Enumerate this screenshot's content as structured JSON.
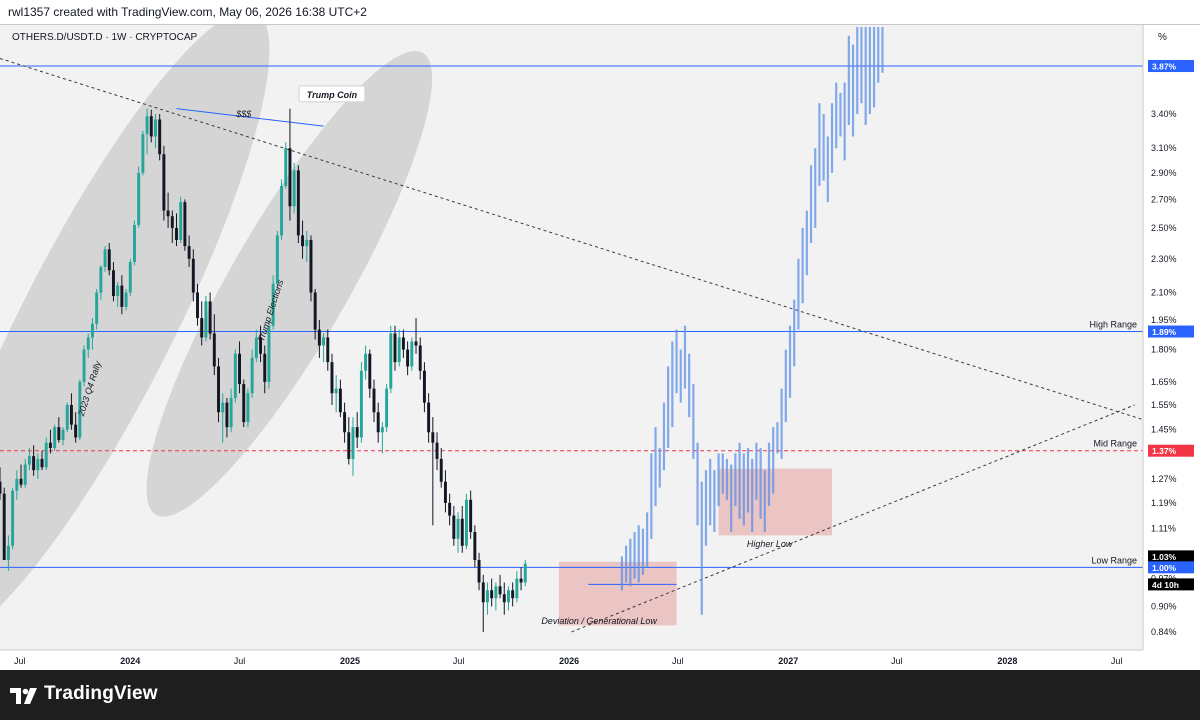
{
  "header": {
    "caption": "rwl1357 created with TradingView.com, May 06, 2026 16:38 UTC+2"
  },
  "footer": {
    "brand": "TradingView"
  },
  "chart_data": {
    "type": "candlestick",
    "title": "OTHERS.D/USDT.D · 1W · CRYPTOCAP",
    "y_unit_label": "%",
    "y_scale": "log",
    "ylim": [
      0.8,
      4.3
    ],
    "y_ticks": [
      0.84,
      0.9,
      0.97,
      1.03,
      1.11,
      1.19,
      1.27,
      1.36,
      1.45,
      1.55,
      1.65,
      1.8,
      1.95,
      2.1,
      2.3,
      2.5,
      2.7,
      2.9,
      3.1,
      3.4
    ],
    "x_range": [
      "2023-05-29",
      "2028-08-14"
    ],
    "x_ticks": [
      {
        "label": "Jul",
        "date": "2023-07-01"
      },
      {
        "label": "2024",
        "date": "2024-01-01"
      },
      {
        "label": "Jul",
        "date": "2024-07-01"
      },
      {
        "label": "2025",
        "date": "2025-01-01"
      },
      {
        "label": "Jul",
        "date": "2025-07-01"
      },
      {
        "label": "2026",
        "date": "2026-01-01"
      },
      {
        "label": "Jul",
        "date": "2026-07-01"
      },
      {
        "label": "2027",
        "date": "2027-01-01"
      },
      {
        "label": "Jul",
        "date": "2027-07-01"
      },
      {
        "label": "2028",
        "date": "2028-01-01"
      },
      {
        "label": "Jul",
        "date": "2028-07-01"
      }
    ],
    "price_badges": [
      {
        "value": "3.87%",
        "price": 3.87,
        "color": "#2962ff"
      },
      {
        "value": "1.89%",
        "price": 1.89,
        "color": "#2962ff"
      },
      {
        "value": "1.37%",
        "price": 1.37,
        "color": "#f23645"
      },
      {
        "value": "1.03%",
        "price": 1.03,
        "color": "#000000"
      },
      {
        "value": "1.00%",
        "price": 1.0,
        "color": "#2962ff"
      },
      {
        "value": "4d 10h",
        "price": 0.955,
        "color": "#000000"
      }
    ],
    "levels": [
      {
        "name": "Top",
        "label": "",
        "price": 3.87,
        "style": "solid",
        "color": "#2962ff"
      },
      {
        "name": "High Range",
        "label": "High Range",
        "price": 1.89,
        "style": "solid",
        "color": "#2962ff"
      },
      {
        "name": "Mid Range",
        "label": "Mid Range",
        "price": 1.37,
        "style": "dashed",
        "color": "#f23645"
      },
      {
        "name": "Low Range",
        "label": "Low Range",
        "price": 1.0,
        "style": "solid",
        "color": "#2962ff"
      }
    ],
    "trendlines": [
      {
        "from": {
          "date": "2023-05-29",
          "price": 3.95
        },
        "to": {
          "date": "2028-08-14",
          "price": 1.49
        },
        "style": "dotted"
      },
      {
        "from": {
          "date": "2026-01-05",
          "price": 0.84
        },
        "to": {
          "date": "2028-07-31",
          "price": 1.55
        },
        "style": "dotted"
      },
      {
        "from": {
          "date": "2024-03-18",
          "price": 3.45
        },
        "to": {
          "date": "2024-11-18",
          "price": 3.29
        },
        "style": "solid"
      }
    ],
    "annotations": [
      {
        "text": "$$$",
        "date": "2024-07-08",
        "price": 3.4,
        "boxed": false,
        "italic": true
      },
      {
        "text": "Trump Coin",
        "date": "2024-12-02",
        "price": 3.58,
        "boxed": true,
        "italic": true
      },
      {
        "text": "Higher Low",
        "date": "2026-12-01",
        "price": 1.065,
        "boxed": false,
        "italic": true
      },
      {
        "text": "Deviation / Generational Low",
        "date": "2026-02-20",
        "price": 0.865,
        "boxed": false,
        "italic": true
      },
      {
        "text": "2023 Q4 Rally",
        "date": "2023-10-25",
        "price": 1.62,
        "boxed": false,
        "italic": true,
        "rotate": -72
      },
      {
        "text": "Trump Elections",
        "date": "2024-08-22",
        "price": 2.0,
        "boxed": false,
        "italic": true,
        "rotate": -72
      }
    ],
    "ellipses": [
      {
        "center": {
          "date": "2023-11-05",
          "price": 1.92
        },
        "rx_weeks": 18,
        "ry_log": 0.95,
        "rotate": 27
      },
      {
        "center": {
          "date": "2024-09-22",
          "price": 2.15
        },
        "rx_weeks": 14,
        "ry_log": 0.72,
        "rotate": 30
      }
    ],
    "zones": [
      {
        "name": "deviation-zone",
        "from": "2025-12-15",
        "to": "2026-06-29",
        "low": 0.855,
        "high": 1.015,
        "color": "#e8b4b4"
      },
      {
        "name": "higher-low-zone",
        "from": "2026-09-07",
        "to": "2027-03-15",
        "low": 1.09,
        "high": 1.305,
        "color": "#e8b4b4"
      }
    ],
    "deviation_line": {
      "from": "2026-02-02",
      "to": "2026-06-29",
      "price": 0.955
    },
    "candles_start": "2023-05-29",
    "candles": [
      [
        1.26,
        1.31,
        1.2,
        1.22
      ],
      [
        1.22,
        1.24,
        1.02,
        1.02
      ],
      [
        1.02,
        1.09,
        0.99,
        1.06
      ],
      [
        1.06,
        1.24,
        1.05,
        1.23
      ],
      [
        1.23,
        1.3,
        1.2,
        1.27
      ],
      [
        1.27,
        1.32,
        1.24,
        1.25
      ],
      [
        1.25,
        1.34,
        1.24,
        1.32
      ],
      [
        1.32,
        1.38,
        1.3,
        1.35
      ],
      [
        1.35,
        1.39,
        1.28,
        1.3
      ],
      [
        1.3,
        1.36,
        1.27,
        1.34
      ],
      [
        1.34,
        1.37,
        1.3,
        1.31
      ],
      [
        1.31,
        1.42,
        1.3,
        1.4
      ],
      [
        1.4,
        1.45,
        1.36,
        1.38
      ],
      [
        1.38,
        1.47,
        1.37,
        1.46
      ],
      [
        1.46,
        1.5,
        1.4,
        1.41
      ],
      [
        1.41,
        1.46,
        1.39,
        1.45
      ],
      [
        1.45,
        1.56,
        1.44,
        1.55
      ],
      [
        1.55,
        1.6,
        1.45,
        1.47
      ],
      [
        1.47,
        1.52,
        1.4,
        1.42
      ],
      [
        1.42,
        1.66,
        1.41,
        1.65
      ],
      [
        1.65,
        1.82,
        1.63,
        1.8
      ],
      [
        1.8,
        1.88,
        1.76,
        1.86
      ],
      [
        1.86,
        1.96,
        1.8,
        1.93
      ],
      [
        1.93,
        2.12,
        1.9,
        2.1
      ],
      [
        2.1,
        2.26,
        2.06,
        2.25
      ],
      [
        2.25,
        2.38,
        2.22,
        2.36
      ],
      [
        2.36,
        2.4,
        2.2,
        2.23
      ],
      [
        2.23,
        2.28,
        2.05,
        2.08
      ],
      [
        2.08,
        2.16,
        2.02,
        2.14
      ],
      [
        2.14,
        2.2,
        1.98,
        2.02
      ],
      [
        2.02,
        2.12,
        2.0,
        2.1
      ],
      [
        2.1,
        2.3,
        2.08,
        2.28
      ],
      [
        2.28,
        2.55,
        2.26,
        2.52
      ],
      [
        2.52,
        2.95,
        2.5,
        2.9
      ],
      [
        2.9,
        3.25,
        2.88,
        3.22
      ],
      [
        3.22,
        3.45,
        3.05,
        3.38
      ],
      [
        3.38,
        3.44,
        3.15,
        3.2
      ],
      [
        3.2,
        3.4,
        3.1,
        3.35
      ],
      [
        3.35,
        3.4,
        3.0,
        3.05
      ],
      [
        3.05,
        3.12,
        2.55,
        2.62
      ],
      [
        2.62,
        2.75,
        2.5,
        2.58
      ],
      [
        2.58,
        2.62,
        2.4,
        2.5
      ],
      [
        2.5,
        2.6,
        2.38,
        2.42
      ],
      [
        2.42,
        2.72,
        2.4,
        2.68
      ],
      [
        2.68,
        2.7,
        2.35,
        2.38
      ],
      [
        2.38,
        2.45,
        2.25,
        2.3
      ],
      [
        2.3,
        2.36,
        2.05,
        2.1
      ],
      [
        2.1,
        2.15,
        1.92,
        1.96
      ],
      [
        1.96,
        2.05,
        1.82,
        1.86
      ],
      [
        1.86,
        2.08,
        1.84,
        2.05
      ],
      [
        2.05,
        2.1,
        1.85,
        1.88
      ],
      [
        1.88,
        1.98,
        1.68,
        1.72
      ],
      [
        1.72,
        1.76,
        1.48,
        1.52
      ],
      [
        1.52,
        1.6,
        1.4,
        1.56
      ],
      [
        1.56,
        1.58,
        1.42,
        1.46
      ],
      [
        1.46,
        1.62,
        1.44,
        1.58
      ],
      [
        1.58,
        1.8,
        1.56,
        1.78
      ],
      [
        1.78,
        1.84,
        1.6,
        1.64
      ],
      [
        1.64,
        1.66,
        1.46,
        1.48
      ],
      [
        1.48,
        1.62,
        1.46,
        1.6
      ],
      [
        1.6,
        1.8,
        1.58,
        1.76
      ],
      [
        1.76,
        1.9,
        1.74,
        1.86
      ],
      [
        1.86,
        1.92,
        1.74,
        1.78
      ],
      [
        1.78,
        1.82,
        1.6,
        1.65
      ],
      [
        1.65,
        1.95,
        1.62,
        1.92
      ],
      [
        1.92,
        2.2,
        1.9,
        2.15
      ],
      [
        2.15,
        2.48,
        2.12,
        2.45
      ],
      [
        2.45,
        2.85,
        2.42,
        2.8
      ],
      [
        2.8,
        3.15,
        2.78,
        3.1
      ],
      [
        3.1,
        3.45,
        2.55,
        2.65
      ],
      [
        2.65,
        2.98,
        2.6,
        2.92
      ],
      [
        2.92,
        2.96,
        2.4,
        2.45
      ],
      [
        2.45,
        2.55,
        2.3,
        2.38
      ],
      [
        2.38,
        2.48,
        2.28,
        2.42
      ],
      [
        2.42,
        2.45,
        2.05,
        2.1
      ],
      [
        2.1,
        2.12,
        1.85,
        1.9
      ],
      [
        1.9,
        1.95,
        1.76,
        1.82
      ],
      [
        1.82,
        1.88,
        1.74,
        1.86
      ],
      [
        1.86,
        1.9,
        1.7,
        1.74
      ],
      [
        1.74,
        1.78,
        1.55,
        1.6
      ],
      [
        1.6,
        1.68,
        1.52,
        1.62
      ],
      [
        1.62,
        1.66,
        1.5,
        1.52
      ],
      [
        1.52,
        1.56,
        1.4,
        1.44
      ],
      [
        1.44,
        1.5,
        1.32,
        1.34
      ],
      [
        1.34,
        1.5,
        1.28,
        1.46
      ],
      [
        1.46,
        1.52,
        1.38,
        1.42
      ],
      [
        1.42,
        1.74,
        1.4,
        1.7
      ],
      [
        1.7,
        1.82,
        1.66,
        1.78
      ],
      [
        1.78,
        1.8,
        1.58,
        1.62
      ],
      [
        1.62,
        1.66,
        1.48,
        1.52
      ],
      [
        1.52,
        1.56,
        1.4,
        1.44
      ],
      [
        1.44,
        1.48,
        1.36,
        1.46
      ],
      [
        1.46,
        1.64,
        1.44,
        1.62
      ],
      [
        1.62,
        1.92,
        1.6,
        1.88
      ],
      [
        1.88,
        1.92,
        1.7,
        1.74
      ],
      [
        1.74,
        1.9,
        1.72,
        1.86
      ],
      [
        1.86,
        1.9,
        1.76,
        1.8
      ],
      [
        1.8,
        1.84,
        1.68,
        1.72
      ],
      [
        1.72,
        1.86,
        1.7,
        1.84
      ],
      [
        1.84,
        1.96,
        1.78,
        1.82
      ],
      [
        1.82,
        1.86,
        1.66,
        1.7
      ],
      [
        1.7,
        1.74,
        1.52,
        1.56
      ],
      [
        1.56,
        1.6,
        1.4,
        1.44
      ],
      [
        1.44,
        1.5,
        1.12,
        1.4
      ],
      [
        1.4,
        1.44,
        1.3,
        1.34
      ],
      [
        1.34,
        1.38,
        1.24,
        1.26
      ],
      [
        1.26,
        1.3,
        1.16,
        1.19
      ],
      [
        1.19,
        1.22,
        1.12,
        1.15
      ],
      [
        1.15,
        1.18,
        1.06,
        1.08
      ],
      [
        1.08,
        1.16,
        1.04,
        1.14
      ],
      [
        1.14,
        1.18,
        1.04,
        1.06
      ],
      [
        1.06,
        1.22,
        1.05,
        1.2
      ],
      [
        1.2,
        1.23,
        1.08,
        1.1
      ],
      [
        1.1,
        1.12,
        1.0,
        1.02
      ],
      [
        1.02,
        1.04,
        0.94,
        0.96
      ],
      [
        0.96,
        0.98,
        0.84,
        0.91
      ],
      [
        0.91,
        0.96,
        0.88,
        0.94
      ],
      [
        0.94,
        0.97,
        0.9,
        0.92
      ],
      [
        0.92,
        0.96,
        0.89,
        0.95
      ],
      [
        0.95,
        0.98,
        0.92,
        0.93
      ],
      [
        0.93,
        0.96,
        0.88,
        0.91
      ],
      [
        0.91,
        0.95,
        0.89,
        0.94
      ],
      [
        0.94,
        0.96,
        0.9,
        0.92
      ],
      [
        0.92,
        0.99,
        0.91,
        0.97
      ],
      [
        0.97,
        1.0,
        0.94,
        0.96
      ],
      [
        0.96,
        1.02,
        0.95,
        1.01
      ]
    ],
    "projection_start": "2026-03-30",
    "projection_bars": [
      [
        0.94,
        1.03
      ],
      [
        0.96,
        1.06
      ],
      [
        0.95,
        1.08
      ],
      [
        0.97,
        1.1
      ],
      [
        0.96,
        1.12
      ],
      [
        0.98,
        1.11
      ],
      [
        1.0,
        1.16
      ],
      [
        1.08,
        1.36
      ],
      [
        1.18,
        1.46
      ],
      [
        1.24,
        1.38
      ],
      [
        1.3,
        1.56
      ],
      [
        1.38,
        1.72
      ],
      [
        1.46,
        1.84
      ],
      [
        1.6,
        1.9
      ],
      [
        1.56,
        1.8
      ],
      [
        1.62,
        1.92
      ],
      [
        1.5,
        1.78
      ],
      [
        1.34,
        1.64
      ],
      [
        1.12,
        1.4
      ],
      [
        0.88,
        1.26
      ],
      [
        1.06,
        1.3
      ],
      [
        1.12,
        1.34
      ],
      [
        1.1,
        1.3
      ],
      [
        1.18,
        1.36
      ],
      [
        1.22,
        1.36
      ],
      [
        1.2,
        1.34
      ],
      [
        1.1,
        1.32
      ],
      [
        1.18,
        1.36
      ],
      [
        1.14,
        1.4
      ],
      [
        1.12,
        1.36
      ],
      [
        1.16,
        1.38
      ],
      [
        1.1,
        1.34
      ],
      [
        1.2,
        1.4
      ],
      [
        1.14,
        1.38
      ],
      [
        1.1,
        1.3
      ],
      [
        1.18,
        1.4
      ],
      [
        1.22,
        1.46
      ],
      [
        1.36,
        1.48
      ],
      [
        1.34,
        1.62
      ],
      [
        1.48,
        1.8
      ],
      [
        1.58,
        1.92
      ],
      [
        1.72,
        2.06
      ],
      [
        1.9,
        2.3
      ],
      [
        2.04,
        2.5
      ],
      [
        2.2,
        2.62
      ],
      [
        2.4,
        2.96
      ],
      [
        2.5,
        3.1
      ],
      [
        2.8,
        3.5
      ],
      [
        2.84,
        3.4
      ],
      [
        2.68,
        3.2
      ],
      [
        2.9,
        3.5
      ],
      [
        3.1,
        3.7
      ],
      [
        3.2,
        3.6
      ],
      [
        3.0,
        3.7
      ],
      [
        3.3,
        4.2
      ],
      [
        3.2,
        4.1
      ],
      [
        3.4,
        4.3
      ],
      [
        3.5,
        4.3
      ],
      [
        3.3,
        4.3
      ],
      [
        3.4,
        4.3
      ],
      [
        3.46,
        4.3
      ],
      [
        3.7,
        4.3
      ],
      [
        3.8,
        4.3
      ]
    ],
    "colors": {
      "bull": "#26a69a",
      "bear": "#131722",
      "projection": "#5b8fe8",
      "background": "#f2f2f2"
    }
  }
}
